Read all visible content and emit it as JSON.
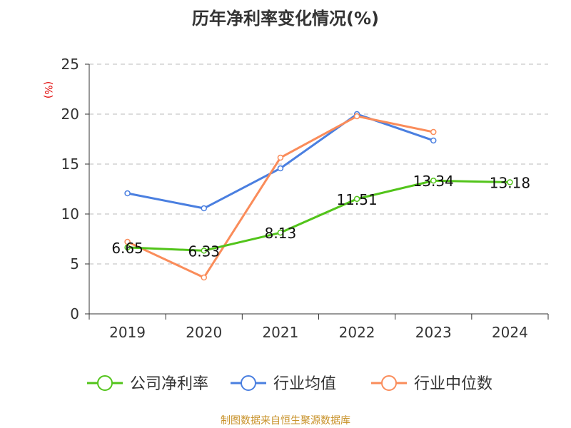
{
  "chart_data": {
    "type": "line",
    "title": "历年净利率变化情况(%)",
    "ylabel": "(%)",
    "xlabel": "",
    "categories": [
      "2019",
      "2020",
      "2021",
      "2022",
      "2023",
      "2024"
    ],
    "ylim": [
      0,
      25
    ],
    "yticks": [
      0,
      5,
      10,
      15,
      20,
      25
    ],
    "grid": true,
    "legend_position": "bottom",
    "series": [
      {
        "name": "公司净利率",
        "color": "#52c41a",
        "values": [
          6.65,
          6.33,
          8.13,
          11.51,
          13.34,
          13.18
        ],
        "labels": [
          "6.65",
          "6.33",
          "8.13",
          "11.51",
          "13.34",
          "13.18"
        ]
      },
      {
        "name": "行业均值",
        "color": "#4a7fe0",
        "values": [
          12.07,
          10.57,
          14.57,
          20.0,
          17.36,
          null
        ]
      },
      {
        "name": "行业中位数",
        "color": "#fa8c5a",
        "values": [
          7.21,
          3.64,
          15.64,
          19.79,
          18.21,
          null
        ]
      }
    ]
  },
  "source": "制图数据来自恒生聚源数据库"
}
